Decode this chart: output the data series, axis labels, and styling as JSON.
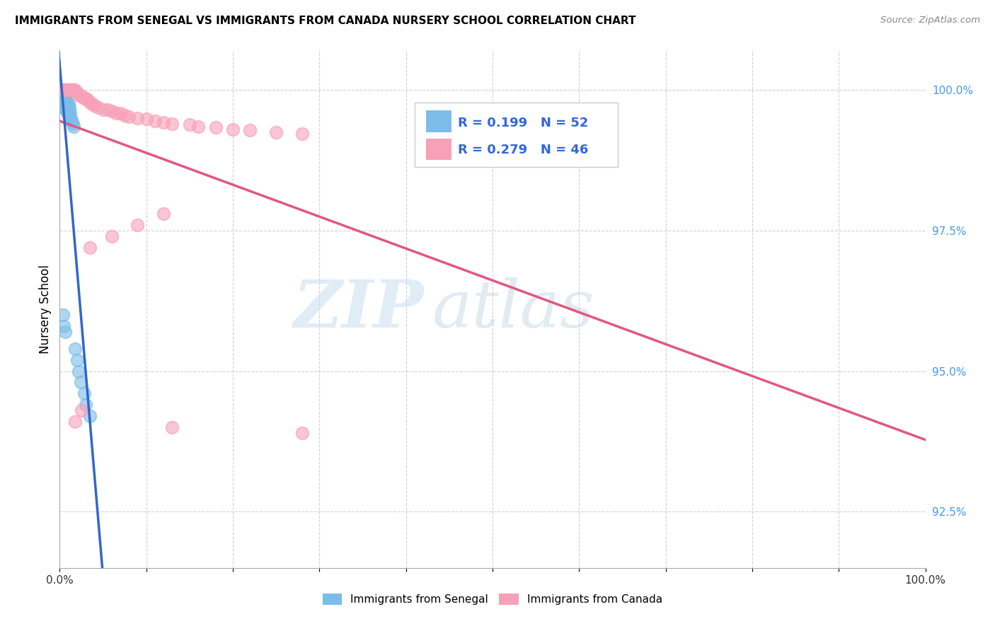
{
  "title": "IMMIGRANTS FROM SENEGAL VS IMMIGRANTS FROM CANADA NURSERY SCHOOL CORRELATION CHART",
  "source": "Source: ZipAtlas.com",
  "ylabel": "Nursery School",
  "xlim": [
    0.0,
    1.0
  ],
  "ylim": [
    0.915,
    1.007
  ],
  "yticks": [
    0.925,
    0.95,
    0.975,
    1.0
  ],
  "ytick_labels": [
    "92.5%",
    "95.0%",
    "97.5%",
    "100.0%"
  ],
  "xticks": [
    0.0,
    0.1,
    0.2,
    0.3,
    0.4,
    0.5,
    0.6,
    0.7,
    0.8,
    0.9,
    1.0
  ],
  "xtick_labels": [
    "0.0%",
    "",
    "",
    "",
    "",
    "",
    "",
    "",
    "",
    "",
    "100.0%"
  ],
  "senegal_color": "#7bbde8",
  "canada_color": "#f8a0b8",
  "trendline_senegal_color": "#3366cc",
  "trendline_canada_color": "#e05880",
  "senegal_R": 0.199,
  "senegal_N": 52,
  "canada_R": 0.279,
  "canada_N": 46,
  "legend_label_1": "Immigrants from Senegal",
  "legend_label_2": "Immigrants from Canada",
  "watermark_zip": "ZIP",
  "watermark_atlas": "atlas",
  "senegal_x": [
    0.001,
    0.001,
    0.001,
    0.001,
    0.002,
    0.002,
    0.002,
    0.002,
    0.002,
    0.003,
    0.003,
    0.003,
    0.003,
    0.003,
    0.004,
    0.004,
    0.004,
    0.004,
    0.005,
    0.005,
    0.005,
    0.005,
    0.006,
    0.006,
    0.006,
    0.007,
    0.007,
    0.007,
    0.008,
    0.008,
    0.009,
    0.009,
    0.01,
    0.01,
    0.01,
    0.011,
    0.011,
    0.012,
    0.013,
    0.014,
    0.015,
    0.016,
    0.004,
    0.005,
    0.006,
    0.018,
    0.02,
    0.022,
    0.024,
    0.028,
    0.03,
    0.035
  ],
  "senegal_y": [
    1.0,
    0.9995,
    0.999,
    0.9985,
    1.0,
    0.9995,
    0.999,
    0.9985,
    0.9975,
    1.0,
    0.9995,
    0.999,
    0.9985,
    0.9975,
    0.999,
    0.9985,
    0.9978,
    0.997,
    0.9988,
    0.9982,
    0.9975,
    0.9968,
    0.9985,
    0.9978,
    0.997,
    0.9982,
    0.9975,
    0.9965,
    0.9978,
    0.9968,
    0.9975,
    0.996,
    0.9975,
    0.9965,
    0.9955,
    0.9968,
    0.9955,
    0.996,
    0.995,
    0.9945,
    0.994,
    0.9935,
    0.96,
    0.958,
    0.957,
    0.954,
    0.952,
    0.95,
    0.948,
    0.946,
    0.944,
    0.942
  ],
  "canada_x": [
    0.005,
    0.007,
    0.008,
    0.01,
    0.012,
    0.014,
    0.015,
    0.016,
    0.018,
    0.02,
    0.022,
    0.025,
    0.028,
    0.03,
    0.032,
    0.035,
    0.038,
    0.04,
    0.045,
    0.05,
    0.055,
    0.06,
    0.065,
    0.07,
    0.075,
    0.08,
    0.09,
    0.1,
    0.11,
    0.12,
    0.13,
    0.15,
    0.16,
    0.18,
    0.2,
    0.22,
    0.25,
    0.28,
    0.12,
    0.09,
    0.06,
    0.035,
    0.025,
    0.018,
    0.13,
    0.28
  ],
  "canada_y": [
    1.0,
    1.0,
    1.0,
    1.0,
    1.0,
    1.0,
    1.0,
    1.0,
    1.0,
    0.9995,
    0.999,
    0.999,
    0.9985,
    0.9985,
    0.9982,
    0.9978,
    0.9975,
    0.9972,
    0.9968,
    0.9965,
    0.9965,
    0.9962,
    0.9958,
    0.9958,
    0.9955,
    0.9952,
    0.995,
    0.9948,
    0.9945,
    0.9942,
    0.994,
    0.9938,
    0.9935,
    0.9933,
    0.993,
    0.9928,
    0.9925,
    0.9922,
    0.978,
    0.976,
    0.974,
    0.972,
    0.943,
    0.941,
    0.94,
    0.939
  ]
}
